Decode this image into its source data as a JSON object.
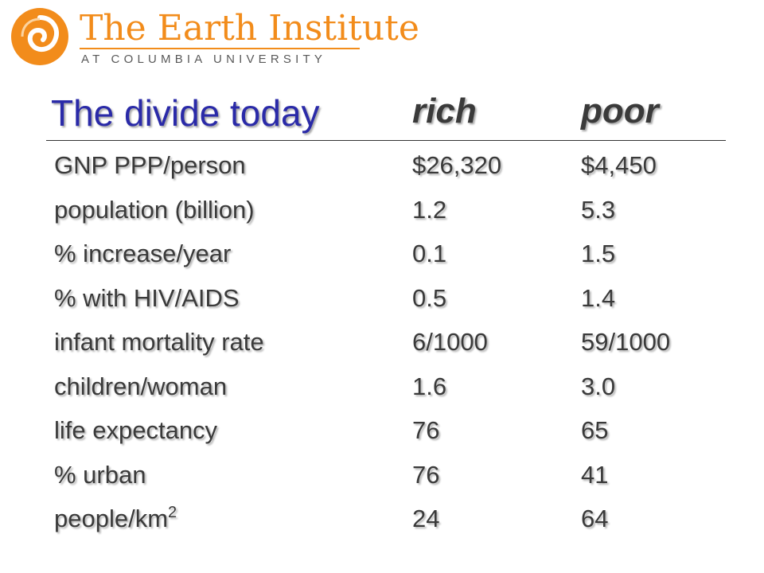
{
  "logo": {
    "name": "The Earth Institute",
    "subtitle": "AT COLUMBIA UNIVERSITY",
    "icon": "swirl-logo-icon",
    "color": "#f28c1b"
  },
  "header": {
    "title": "The divide today",
    "title_color": "#2a2aa8",
    "col_rich": "rich",
    "col_poor": "poor"
  },
  "table": {
    "rows": [
      {
        "label": "GNP PPP/person",
        "rich": "$26,320",
        "poor": "$4,450"
      },
      {
        "label": "population (billion)",
        "rich": "1.2",
        "poor": "5.3"
      },
      {
        "label": "% increase/year",
        "rich": "0.1",
        "poor": "1.5"
      },
      {
        "label": "% with HIV/AIDS",
        "rich": "0.5",
        "poor": "1.4"
      },
      {
        "label": "infant mortality rate",
        "rich": "6/1000",
        "poor": "59/1000"
      },
      {
        "label": "children/woman",
        "rich": "1.6",
        "poor": "3.0"
      },
      {
        "label": "life expectancy",
        "rich": "76",
        "poor": "65"
      },
      {
        "label": "% urban",
        "rich": "76",
        "poor": "41"
      },
      {
        "label": "people/km",
        "label_sup": "2",
        "rich": "24",
        "poor": "64"
      }
    ]
  }
}
